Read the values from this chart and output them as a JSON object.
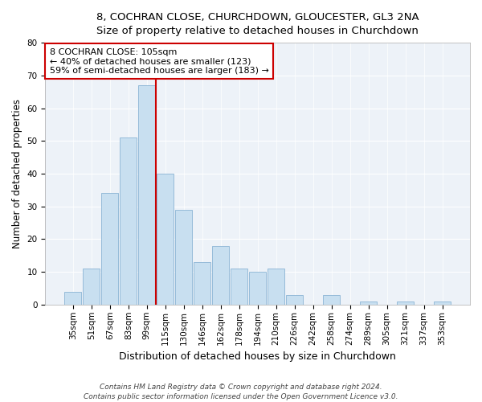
{
  "title": "8, COCHRAN CLOSE, CHURCHDOWN, GLOUCESTER, GL3 2NA",
  "subtitle": "Size of property relative to detached houses in Churchdown",
  "xlabel": "Distribution of detached houses by size in Churchdown",
  "ylabel": "Number of detached properties",
  "categories": [
    "35sqm",
    "51sqm",
    "67sqm",
    "83sqm",
    "99sqm",
    "115sqm",
    "130sqm",
    "146sqm",
    "162sqm",
    "178sqm",
    "194sqm",
    "210sqm",
    "226sqm",
    "242sqm",
    "258sqm",
    "274sqm",
    "289sqm",
    "305sqm",
    "321sqm",
    "337sqm",
    "353sqm"
  ],
  "values": [
    4,
    11,
    34,
    51,
    67,
    40,
    29,
    13,
    18,
    11,
    10,
    11,
    3,
    0,
    3,
    0,
    1,
    0,
    1,
    0,
    1
  ],
  "bar_color": "#c8dff0",
  "bar_edge_color": "#8ab4d4",
  "vline_color": "#cc0000",
  "vline_x": 4.5,
  "ylim": [
    0,
    80
  ],
  "yticks": [
    0,
    10,
    20,
    30,
    40,
    50,
    60,
    70,
    80
  ],
  "annotation_text": "8 COCHRAN CLOSE: 105sqm\n← 40% of detached houses are smaller (123)\n59% of semi-detached houses are larger (183) →",
  "annotation_box_facecolor": "#ffffff",
  "annotation_box_edgecolor": "#cc0000",
  "footer_line1": "Contains HM Land Registry data © Crown copyright and database right 2024.",
  "footer_line2": "Contains public sector information licensed under the Open Government Licence v3.0.",
  "bg_color": "#edf2f8",
  "grid_color": "#ffffff",
  "title_fontsize": 9.5,
  "subtitle_fontsize": 9.0,
  "ylabel_fontsize": 8.5,
  "xlabel_fontsize": 9.0,
  "tick_fontsize": 7.5,
  "ann_fontsize": 8.0,
  "footer_fontsize": 6.5
}
